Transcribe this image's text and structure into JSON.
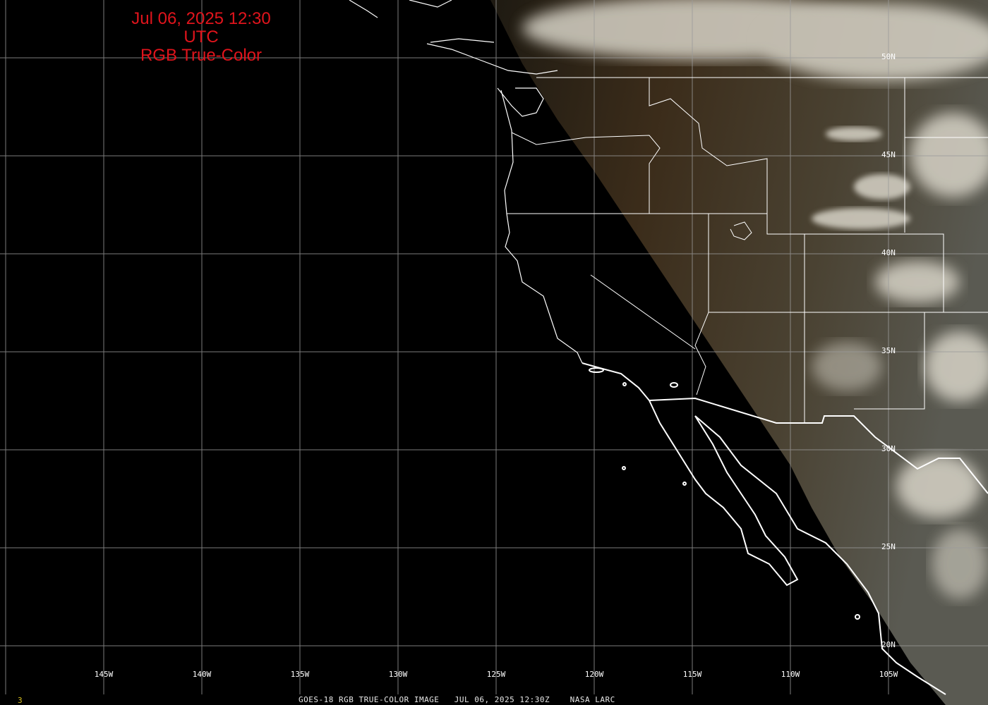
{
  "title": {
    "line1": "Jul 06, 2025 12:30 UTC",
    "line2": "RGB True-Color"
  },
  "grid": {
    "longitude_labels": [
      "145W",
      "140W",
      "135W",
      "130W",
      "125W",
      "120W",
      "115W",
      "110W",
      "105W"
    ],
    "latitude_labels": [
      "50N",
      "45N",
      "40N",
      "35N",
      "30N",
      "25N",
      "20N"
    ]
  },
  "footer": {
    "caption": "GOES-18 RGB TRUE-COLOR IMAGE   JUL 06, 2025 12:30Z    NASA LARC",
    "frame_number": "3"
  },
  "colors": {
    "title": "#e0141c",
    "grid": "#9a9a9a",
    "borders": "#ffffff",
    "footer_frame": "#d8c020",
    "land": "#3a2e1c",
    "cloud": "#d8d4c8"
  }
}
